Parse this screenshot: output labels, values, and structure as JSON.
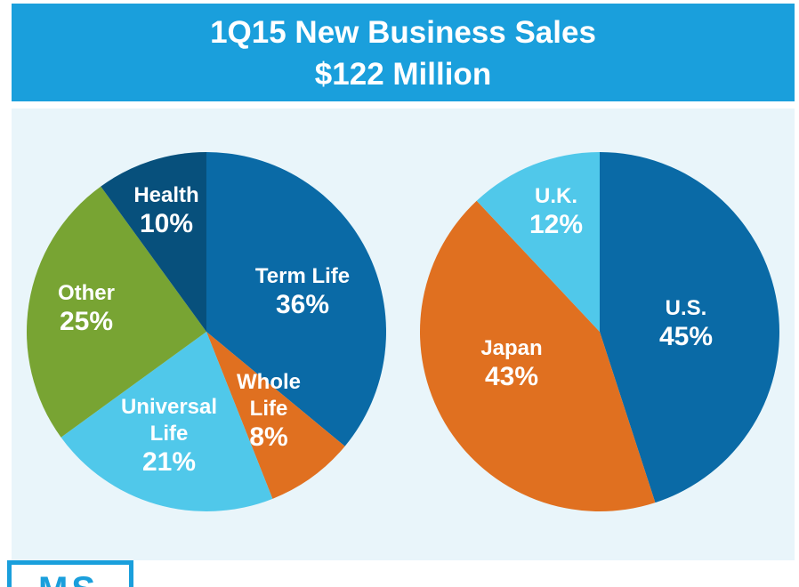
{
  "header": {
    "title": "1Q15 New Business Sales",
    "subtitle": "$122 Million"
  },
  "chart_data": [
    {
      "type": "pie",
      "slices": [
        {
          "name": "Term Life",
          "label_lines": [
            "Term Life"
          ],
          "value": 36,
          "value_label": "36%",
          "color": "#0a6aa6"
        },
        {
          "name": "Whole Life",
          "label_lines": [
            "Whole",
            "Life"
          ],
          "value": 8,
          "value_label": "8%",
          "color": "#e07020"
        },
        {
          "name": "Universal Life",
          "label_lines": [
            "Universal",
            "Life"
          ],
          "value": 21,
          "value_label": "21%",
          "color": "#50c8ea"
        },
        {
          "name": "Other",
          "label_lines": [
            "Other"
          ],
          "value": 25,
          "value_label": "25%",
          "color": "#78a433"
        },
        {
          "name": "Health",
          "label_lines": [
            "Health"
          ],
          "value": 10,
          "value_label": "10%",
          "color": "#07507c"
        }
      ]
    },
    {
      "type": "pie",
      "slices": [
        {
          "name": "U.S.",
          "label_lines": [
            "U.S."
          ],
          "value": 45,
          "value_label": "45%",
          "color": "#0a6aa6"
        },
        {
          "name": "Japan",
          "label_lines": [
            "Japan"
          ],
          "value": 43,
          "value_label": "43%",
          "color": "#e07020"
        },
        {
          "name": "U.K.",
          "label_lines": [
            "U.K."
          ],
          "value": 12,
          "value_label": "12%",
          "color": "#50c8ea"
        }
      ]
    }
  ],
  "logo": {
    "text": "MS",
    "color": "#1a9fdc"
  }
}
